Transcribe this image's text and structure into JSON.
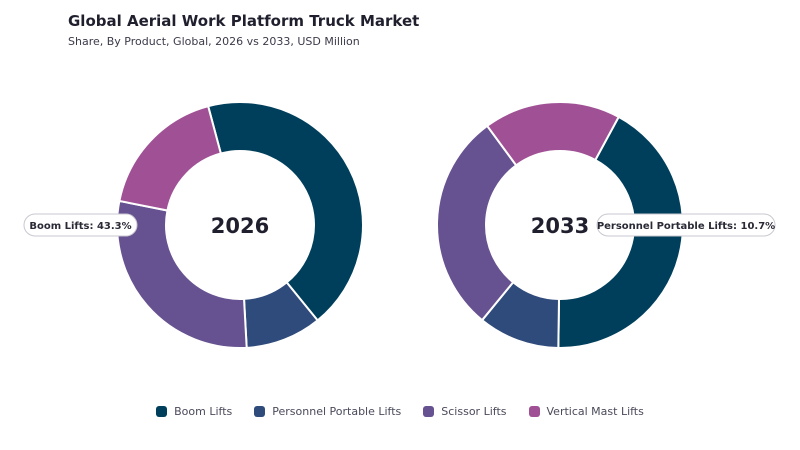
{
  "title": "Global Aerial Work Platform Truck Market",
  "subtitle": "Share, By Product, Global, 2026 vs 2033, USD Million",
  "chart_data": [
    {
      "type": "pie",
      "label": "2026",
      "categories": [
        "Boom Lifts",
        "Personnel Portable Lifts",
        "Scissor Lifts",
        "Vertical Mast Lifts"
      ],
      "values": [
        43.3,
        10.0,
        29.0,
        17.7
      ],
      "colors": [
        "#003f5c",
        "#2f4b7c",
        "#665191",
        "#a05195"
      ],
      "callout": {
        "category": "Boom Lifts",
        "text": "Boom Lifts: 43.3%"
      }
    },
    {
      "type": "pie",
      "label": "2033",
      "categories": [
        "Boom Lifts",
        "Personnel Portable Lifts",
        "Scissor Lifts",
        "Vertical Mast Lifts"
      ],
      "values": [
        42.3,
        10.7,
        29.0,
        18.0
      ],
      "colors": [
        "#003f5c",
        "#2f4b7c",
        "#665191",
        "#a05195"
      ],
      "callout": {
        "category": "Personnel Portable Lifts",
        "text": "Personnel Portable Lifts: 10.7%"
      }
    }
  ],
  "legend": [
    {
      "label": "Boom Lifts",
      "color": "#003f5c"
    },
    {
      "label": "Personnel Portable Lifts",
      "color": "#2f4b7c"
    },
    {
      "label": "Scissor Lifts",
      "color": "#665191"
    },
    {
      "label": "Vertical Mast Lifts",
      "color": "#a05195"
    }
  ]
}
